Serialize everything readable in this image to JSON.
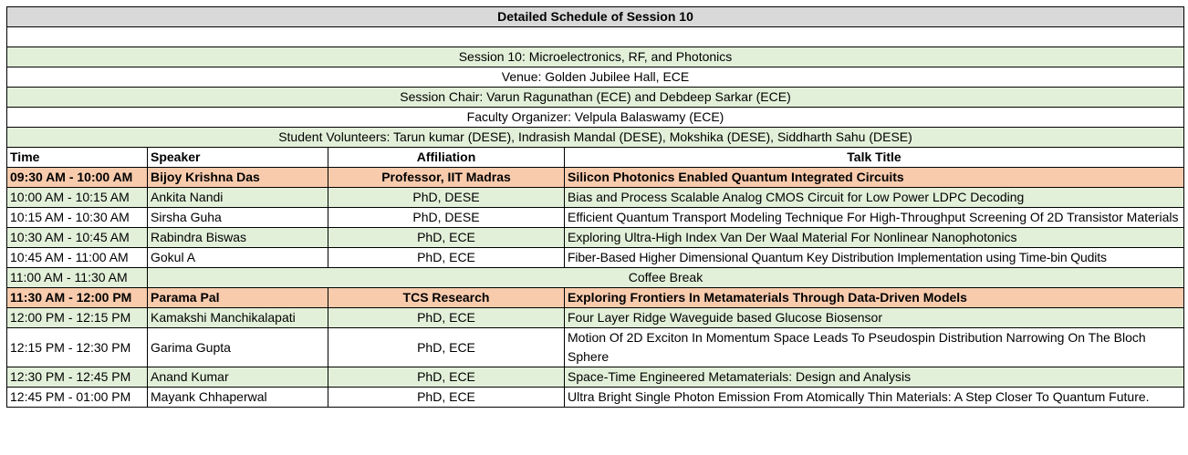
{
  "title": "Detailed Schedule of Session 10",
  "info": {
    "session": "Session 10: Microelectronics, RF, and Photonics",
    "venue": "Venue: Golden Jubilee Hall, ECE",
    "chair": "Session Chair: Varun Ragunathan (ECE) and Debdeep Sarkar (ECE)",
    "organizer": "Faculty Organizer: Velpula Balaswamy (ECE)",
    "volunteers": "Student Volunteers: Tarun kumar (DESE), Indrasish Mandal (DESE), Mokshika (DESE), Siddharth Sahu (DESE)"
  },
  "headers": {
    "time": "Time",
    "speaker": "Speaker",
    "affiliation": "Affiliation",
    "talk": "Talk Title"
  },
  "rows": [
    {
      "time": "09:30 AM - 10:00 AM",
      "speaker": "Bijoy Krishna Das",
      "affiliation": "Professor, IIT Madras",
      "talk": "Silicon Photonics Enabled Quantum Integrated Circuits"
    },
    {
      "time": "10:00 AM - 10:15 AM",
      "speaker": "Ankita Nandi",
      "affiliation": "PhD, DESE",
      "talk": "Bias and Process Scalable Analog CMOS Circuit for Low Power LDPC Decoding"
    },
    {
      "time": "10:15 AM - 10:30 AM",
      "speaker": "Sirsha Guha",
      "affiliation": "PhD, DESE",
      "talk": "Efficient Quantum Transport Modeling Technique For High-Throughput Screening Of 2D Transistor Materials"
    },
    {
      "time": "10:30 AM - 10:45 AM",
      "speaker": "Rabindra Biswas",
      "affiliation": "PhD, ECE",
      "talk": "Exploring Ultra-High Index Van Der Waal Material For Nonlinear Nanophotonics"
    },
    {
      "time": "10:45 AM - 11:00 AM",
      "speaker": "Gokul A",
      "affiliation": "PhD, ECE",
      "talk": "Fiber-Based Higher Dimensional Quantum Key Distribution Implementation using Time-bin Qudits"
    },
    {
      "time": "11:00 AM - 11:30 AM",
      "break": "Coffee Break"
    },
    {
      "time": "11:30 AM - 12:00 PM",
      "speaker": "Parama Pal",
      "affiliation": "TCS Research",
      "talk": "Exploring Frontiers In Metamaterials Through Data-Driven Models"
    },
    {
      "time": "12:00 PM - 12:15 PM",
      "speaker": "Kamakshi Manchikalapati",
      "affiliation": "PhD, ECE",
      "talk": "Four Layer Ridge Waveguide based Glucose Biosensor"
    },
    {
      "time": "12:15 PM - 12:30 PM",
      "speaker": "Garima Gupta",
      "affiliation": "PhD, ECE",
      "talk": "Motion Of 2D Exciton In Momentum Space Leads To Pseudospin Distribution Narrowing On The Bloch Sphere"
    },
    {
      "time": "12:30 PM - 12:45 PM",
      "speaker": "Anand Kumar",
      "affiliation": "PhD, ECE",
      "talk": "Space-Time Engineered Metamaterials: Design and Analysis"
    },
    {
      "time": "12:45 PM - 01:00 PM",
      "speaker": "Mayank Chhaperwal",
      "affiliation": "PhD, ECE",
      "talk": "Ultra Bright Single Photon Emission From Atomically Thin Materials: A Step Closer To Quantum Future."
    }
  ],
  "colors": {
    "title_bg": "#d9d9d9",
    "green_bg": "#e2f0d9",
    "highlight_bg": "#f8cbad"
  }
}
